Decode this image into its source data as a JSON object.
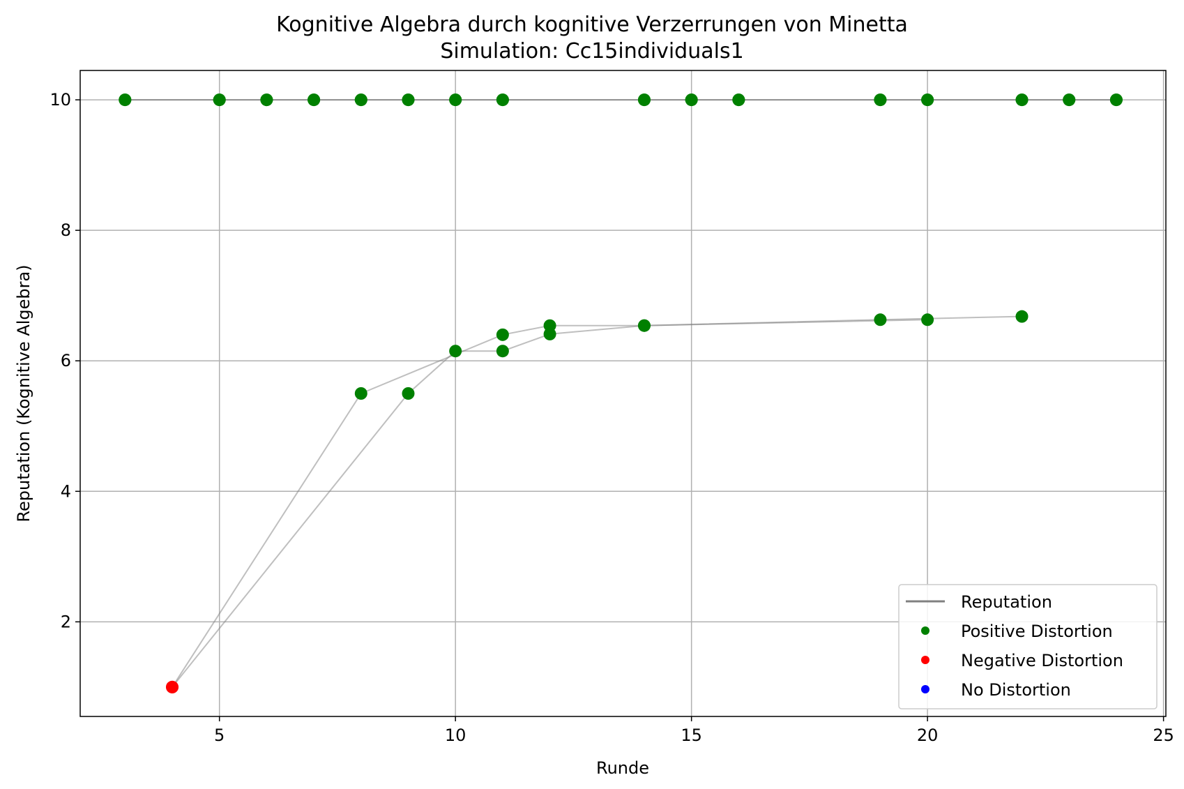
{
  "chart_data": {
    "type": "scatter",
    "title": "Kognitive Algebra durch kognitive Verzerrungen von Minetta",
    "subtitle": "Simulation: Cc15individuals1",
    "xlabel": "Runde",
    "ylabel": "Reputation (Kognitive Algebra)",
    "xlim": [
      2.05,
      25.05
    ],
    "ylim": [
      0.55,
      10.45
    ],
    "xticks": [
      5,
      10,
      15,
      20,
      25
    ],
    "yticks": [
      2,
      4,
      6,
      8,
      10
    ],
    "grid": true,
    "legend_position": "lower right",
    "colors": {
      "reputation_line": "#808080",
      "positive": "#008000",
      "negative": "#ff0000",
      "none": "#0000ff"
    },
    "legend": [
      {
        "label": "Reputation",
        "kind": "line",
        "color": "#808080"
      },
      {
        "label": "Positive Distortion",
        "kind": "marker",
        "color": "#008000"
      },
      {
        "label": "Negative Distortion",
        "kind": "marker",
        "color": "#ff0000"
      },
      {
        "label": "No Distortion",
        "kind": "marker",
        "color": "#0000ff"
      }
    ],
    "series": [
      {
        "x": [
          3,
          5,
          6,
          7,
          8,
          9,
          10,
          11,
          14,
          15,
          16,
          19,
          20,
          22,
          23,
          24
        ],
        "y": [
          10,
          10,
          10,
          10,
          10,
          10,
          10,
          10,
          10,
          10,
          10,
          10,
          10,
          10,
          10,
          10
        ],
        "distortion": [
          "positive",
          "positive",
          "positive",
          "positive",
          "positive",
          "positive",
          "positive",
          "positive",
          "positive",
          "positive",
          "positive",
          "positive",
          "positive",
          "positive",
          "positive",
          "positive"
        ]
      },
      {
        "x": [
          3,
          5,
          6,
          7,
          8,
          9,
          10,
          11,
          14,
          15,
          16,
          19,
          20,
          22,
          23,
          24
        ],
        "y": [
          10,
          10,
          10,
          10,
          10,
          10,
          10,
          10,
          10,
          10,
          10,
          10,
          10,
          10,
          10,
          10
        ],
        "distortion": [
          "positive",
          "positive",
          "positive",
          "positive",
          "positive",
          "positive",
          "positive",
          "positive",
          "positive",
          "positive",
          "positive",
          "positive",
          "positive",
          "positive",
          "positive",
          "positive"
        ]
      },
      {
        "x": [
          4,
          8,
          11,
          12,
          14,
          19,
          22
        ],
        "y": [
          1.0,
          5.5,
          6.4,
          6.54,
          6.54,
          6.63,
          6.68
        ],
        "distortion": [
          "negative",
          "positive",
          "positive",
          "positive",
          "positive",
          "positive",
          "positive"
        ]
      },
      {
        "x": [
          4,
          9,
          10,
          11,
          12,
          14,
          20
        ],
        "y": [
          1.0,
          5.5,
          6.15,
          6.15,
          6.41,
          6.54,
          6.63
        ],
        "distortion": [
          "negative",
          "positive",
          "positive",
          "positive",
          "positive",
          "positive",
          "positive"
        ]
      }
    ]
  }
}
